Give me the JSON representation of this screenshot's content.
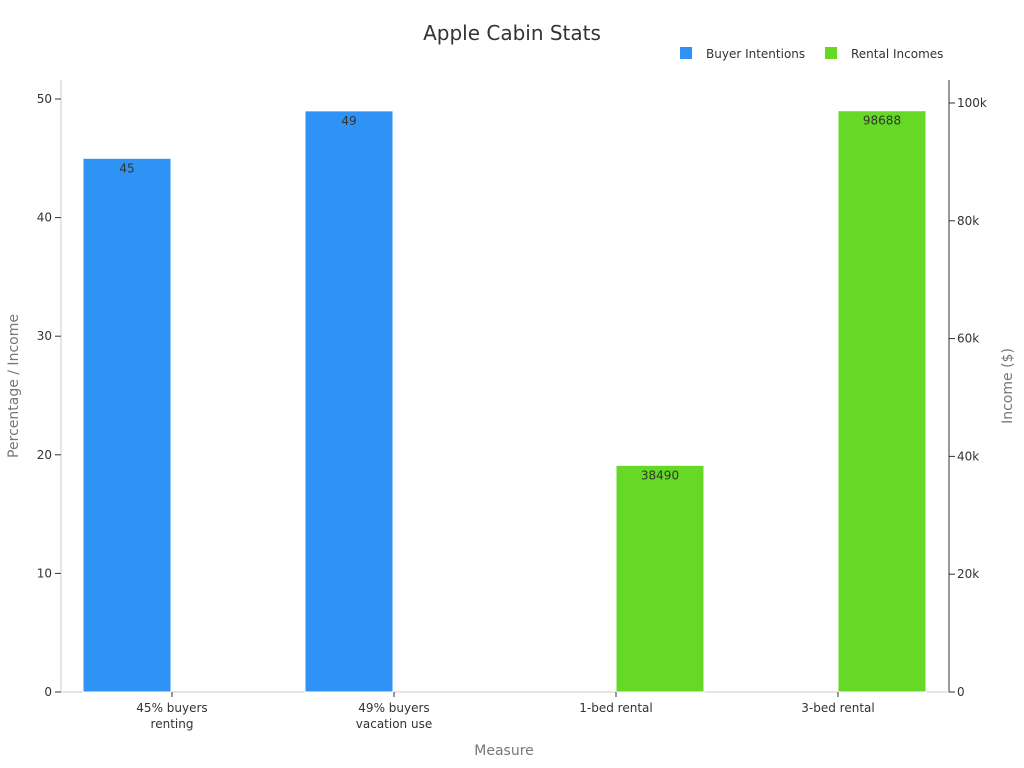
{
  "chart_data": {
    "type": "bar",
    "title": "Apple Cabin Stats",
    "xlabel": "Measure",
    "ylabel": "Percentage / Income",
    "y2label": "Income ($)",
    "categories": [
      [
        "45% buyers",
        "renting"
      ],
      [
        "49% buyers",
        "vacation use"
      ],
      [
        "1-bed rental"
      ],
      [
        "3-bed rental"
      ]
    ],
    "series": [
      {
        "name": "Buyer Intentions",
        "axis": "left",
        "color": "#2F93F6",
        "values": [
          45,
          49,
          null,
          null
        ]
      },
      {
        "name": "Rental Incomes",
        "axis": "right",
        "color": "#66D926",
        "values": [
          null,
          null,
          38490,
          98688
        ]
      }
    ],
    "bar_labels": [
      "45",
      "49",
      "38490",
      "98688"
    ],
    "ylim": [
      0,
      52
    ],
    "y_ticks": [
      0,
      10,
      20,
      30,
      40,
      50
    ],
    "y2lim": [
      0,
      104000
    ],
    "y2_ticks": [
      0,
      20000,
      40000,
      60000,
      80000,
      100000
    ],
    "y2_tick_labels": [
      "0",
      "20k",
      "40k",
      "60k",
      "80k",
      "100k"
    ],
    "legend_position": "top-right",
    "grid": false
  }
}
